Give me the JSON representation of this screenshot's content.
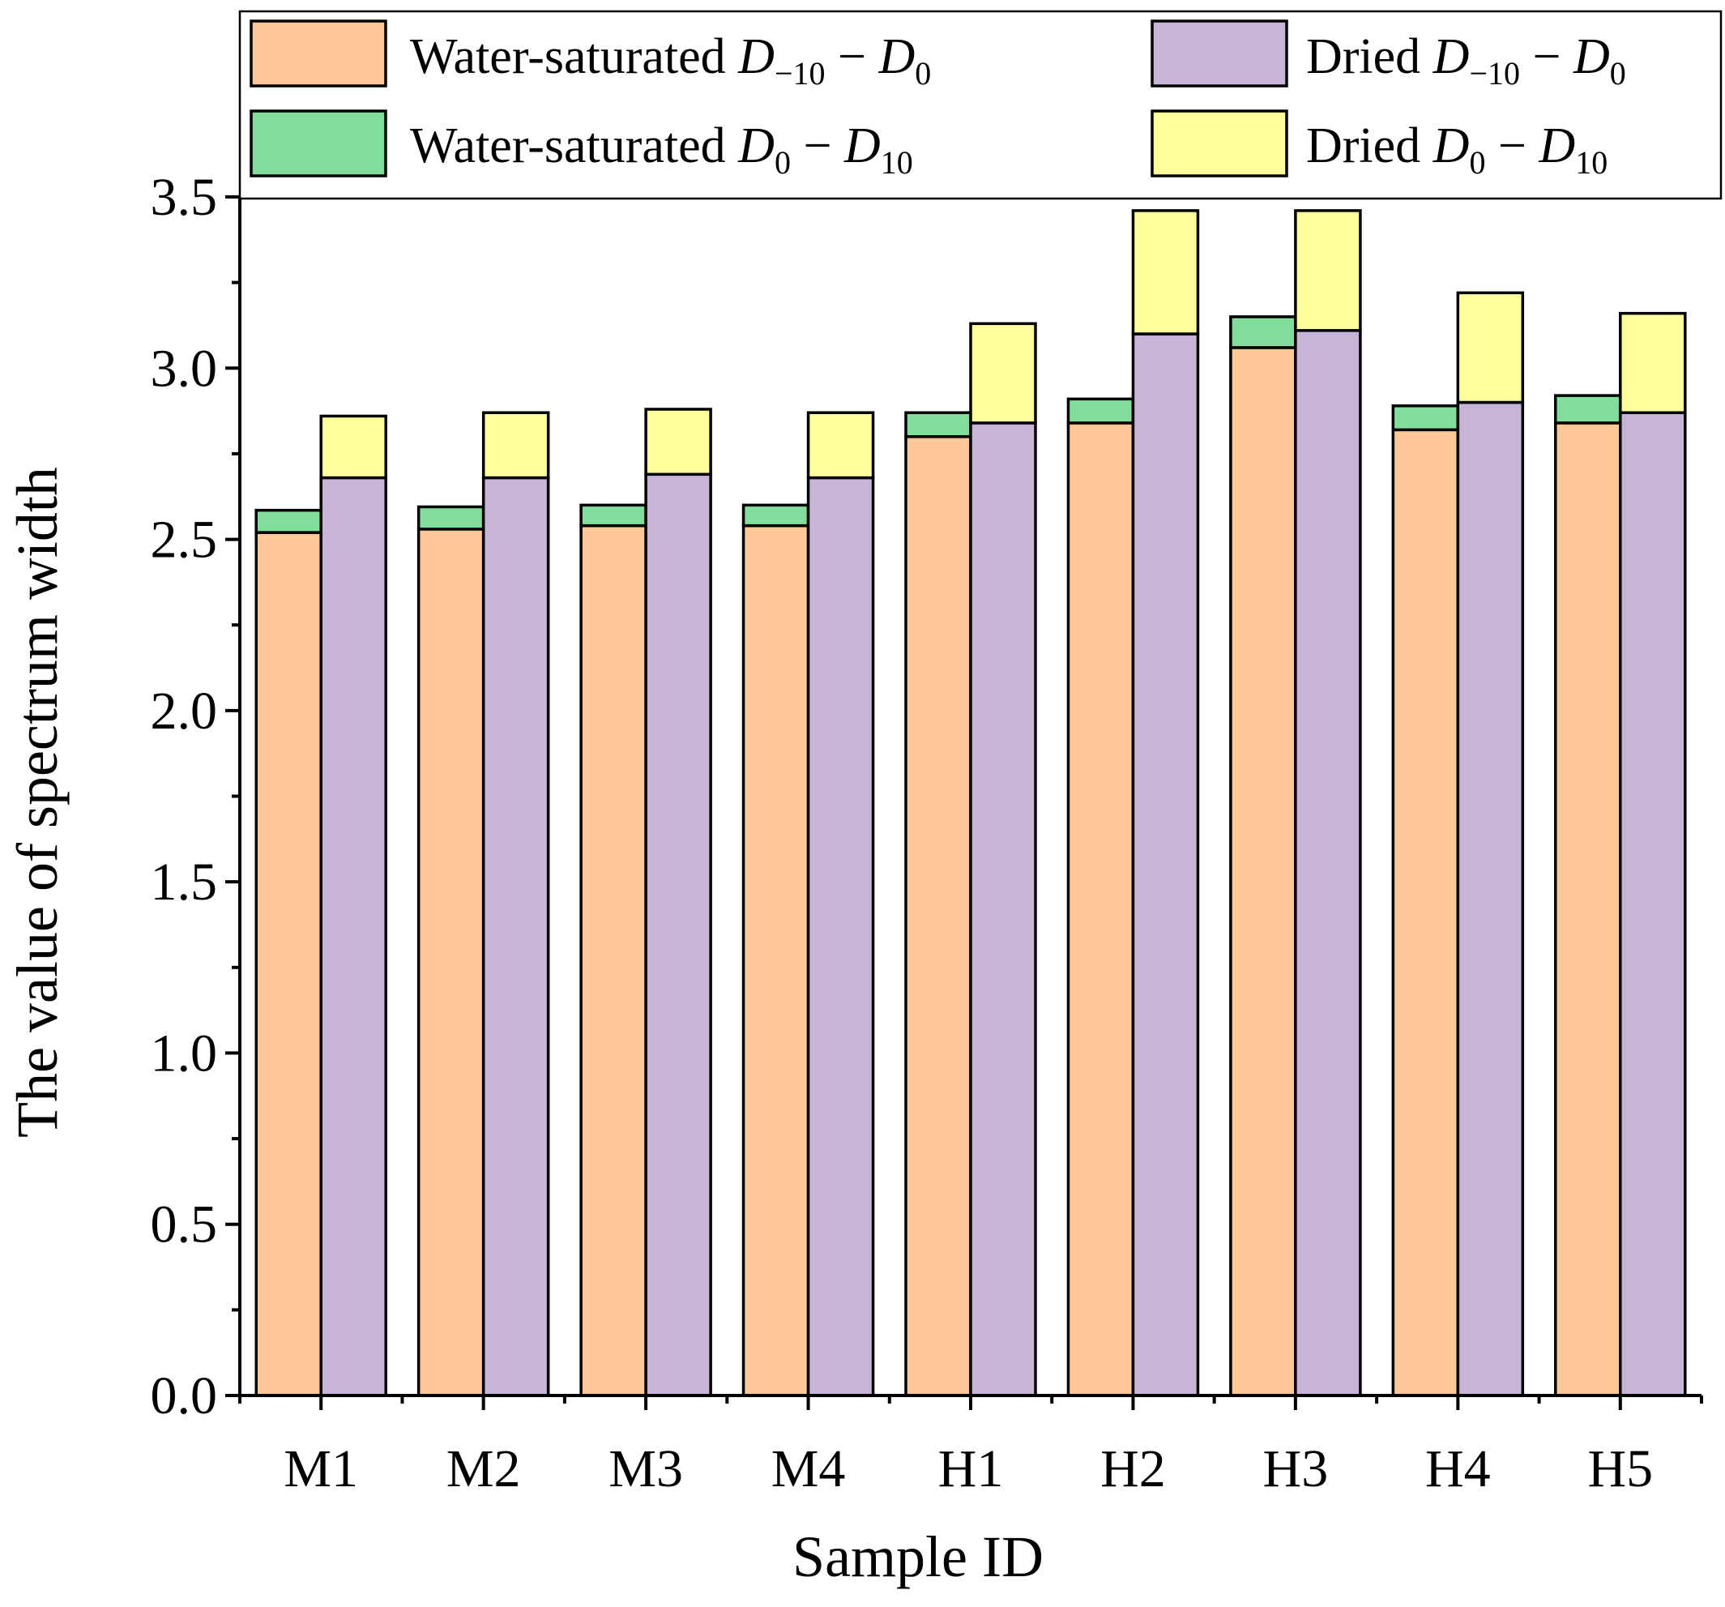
{
  "chart_data": {
    "type": "bar",
    "stacked": true,
    "grouped": true,
    "title": "",
    "xlabel": "Sample ID",
    "ylabel": "The value of spectrum width",
    "ylim": [
      0,
      3.5
    ],
    "yticks": [
      "0.0",
      "0.5",
      "1.0",
      "1.5",
      "2.0",
      "2.5",
      "3.0",
      "3.5"
    ],
    "categories": [
      "M1",
      "M2",
      "M3",
      "M4",
      "H1",
      "H2",
      "H3",
      "H4",
      "H5"
    ],
    "groups": [
      {
        "name": "Water-saturated",
        "series": [
          {
            "name": "Water-saturated D−10 − D0",
            "color": "#FFC896",
            "values": [
              2.52,
              2.53,
              2.54,
              2.54,
              2.8,
              2.84,
              3.06,
              2.82,
              2.84
            ]
          },
          {
            "name": "Water-saturated D0 − D10",
            "color": "#82DC9B",
            "values": [
              0.065,
              0.065,
              0.06,
              0.06,
              0.07,
              0.07,
              0.09,
              0.07,
              0.08
            ]
          }
        ]
      },
      {
        "name": "Dried",
        "series": [
          {
            "name": "Dried D−10 − D0",
            "color": "#C8B4D7",
            "values": [
              2.68,
              2.68,
              2.69,
              2.68,
              2.84,
              3.1,
              3.11,
              2.9,
              2.87
            ]
          },
          {
            "name": "Dried D0 − D10",
            "color": "#FFFF9B",
            "values": [
              0.18,
              0.19,
              0.19,
              0.19,
              0.29,
              0.36,
              0.35,
              0.32,
              0.29
            ]
          }
        ]
      }
    ],
    "legend": {
      "position": "top",
      "entries": [
        {
          "prefix": "Water-saturated ",
          "a": "D",
          "a_sub": "−10",
          "op": " − ",
          "b": "D",
          "b_sub": "0",
          "color": "#FFC896"
        },
        {
          "prefix": "Dried ",
          "a": "D",
          "a_sub": "−10",
          "op": " − ",
          "b": "D",
          "b_sub": "0",
          "color": "#C8B4D7"
        },
        {
          "prefix": "Water-saturated ",
          "a": "D",
          "a_sub": "0",
          "op": " − ",
          "b": "D",
          "b_sub": "10",
          "color": "#82DC9B"
        },
        {
          "prefix": "Dried ",
          "a": "D",
          "a_sub": "0",
          "op": " − ",
          "b": "D",
          "b_sub": "10",
          "color": "#FFFF9B"
        }
      ]
    }
  }
}
